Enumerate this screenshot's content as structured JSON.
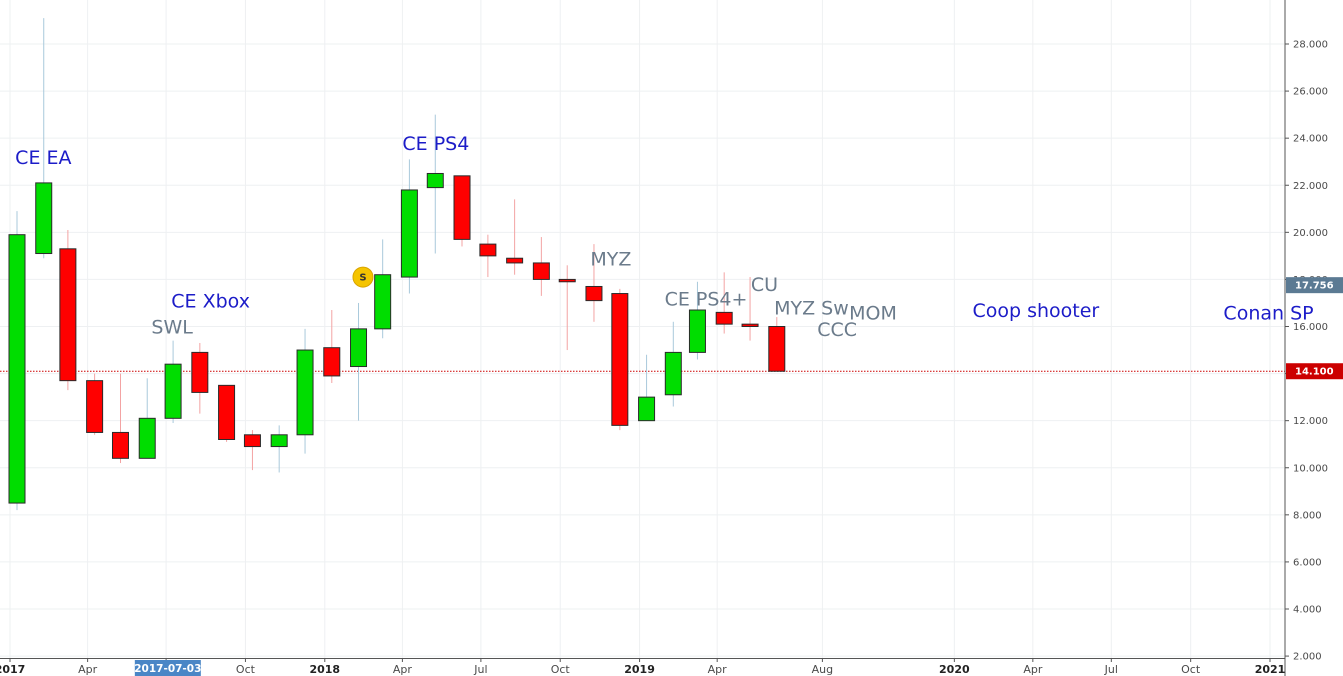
{
  "chart_data": {
    "type": "candlestick",
    "y_axis": {
      "range": [
        2.0,
        29.5
      ],
      "ticks": [
        "2.000",
        "4.000",
        "6.000",
        "8.000",
        "10.000",
        "12.000",
        "14.000",
        "16.000",
        "18.000",
        "20.000",
        "22.000",
        "24.000",
        "26.000",
        "28.000"
      ]
    },
    "x_axis": {
      "range": [
        "2016-12-24",
        "2021-02-15"
      ],
      "ticks": [
        {
          "label": "2017",
          "date": "2017-01-01",
          "bold": true
        },
        {
          "label": "Apr",
          "date": "2017-04-01"
        },
        {
          "label": "Jul",
          "date": "2017-07-01"
        },
        {
          "label": "Oct",
          "date": "2017-10-01"
        },
        {
          "label": "2018",
          "date": "2018-01-01",
          "bold": true
        },
        {
          "label": "Apr",
          "date": "2018-04-01"
        },
        {
          "label": "Jul",
          "date": "2018-07-01"
        },
        {
          "label": "Oct",
          "date": "2018-10-01"
        },
        {
          "label": "2019",
          "date": "2019-01-01",
          "bold": true
        },
        {
          "label": "Apr",
          "date": "2019-04-01"
        },
        {
          "label": "Aug",
          "date": "2019-08-01"
        },
        {
          "label": "2020",
          "date": "2020-01-01",
          "bold": true
        },
        {
          "label": "Apr",
          "date": "2020-04-01"
        },
        {
          "label": "Jul",
          "date": "2020-07-01"
        },
        {
          "label": "Oct",
          "date": "2020-10-01"
        },
        {
          "label": "2021",
          "date": "2021-01-01",
          "bold": true
        }
      ],
      "cursor_label": "2017-07-03",
      "cursor_date": "2017-07-03"
    },
    "candles": [
      {
        "date": "2017-01-01",
        "o": 8.5,
        "h": 20.9,
        "l": 8.2,
        "c": 19.9
      },
      {
        "date": "2017-02-01",
        "o": 19.1,
        "h": 29.1,
        "l": 18.9,
        "c": 22.1
      },
      {
        "date": "2017-03-01",
        "o": 19.3,
        "h": 20.1,
        "l": 13.3,
        "c": 13.7
      },
      {
        "date": "2017-04-01",
        "o": 13.7,
        "h": 14.0,
        "l": 11.4,
        "c": 11.5
      },
      {
        "date": "2017-05-01",
        "o": 11.5,
        "h": 14.0,
        "l": 10.2,
        "c": 10.4
      },
      {
        "date": "2017-06-01",
        "o": 10.4,
        "h": 13.8,
        "l": 10.4,
        "c": 12.1
      },
      {
        "date": "2017-07-01",
        "o": 12.1,
        "h": 15.4,
        "l": 11.9,
        "c": 14.4
      },
      {
        "date": "2017-08-01",
        "o": 14.9,
        "h": 15.3,
        "l": 12.3,
        "c": 13.2
      },
      {
        "date": "2017-09-01",
        "o": 13.5,
        "h": 13.5,
        "l": 11.1,
        "c": 11.2
      },
      {
        "date": "2017-10-01",
        "o": 11.4,
        "h": 11.6,
        "l": 9.9,
        "c": 10.9
      },
      {
        "date": "2017-11-01",
        "o": 10.9,
        "h": 11.8,
        "l": 9.8,
        "c": 11.4
      },
      {
        "date": "2017-12-01",
        "o": 11.4,
        "h": 15.9,
        "l": 10.6,
        "c": 15.0
      },
      {
        "date": "2018-01-01",
        "o": 15.1,
        "h": 16.7,
        "l": 13.6,
        "c": 13.9
      },
      {
        "date": "2018-02-01",
        "o": 14.3,
        "h": 17.0,
        "l": 12.0,
        "c": 15.9
      },
      {
        "date": "2018-03-01",
        "o": 15.9,
        "h": 19.7,
        "l": 15.5,
        "c": 18.2
      },
      {
        "date": "2018-04-01",
        "o": 18.1,
        "h": 23.1,
        "l": 17.4,
        "c": 21.8
      },
      {
        "date": "2018-05-01",
        "o": 21.9,
        "h": 25.0,
        "l": 19.1,
        "c": 22.5
      },
      {
        "date": "2018-06-01",
        "o": 22.4,
        "h": 22.4,
        "l": 19.4,
        "c": 19.7
      },
      {
        "date": "2018-07-01",
        "o": 19.5,
        "h": 19.9,
        "l": 18.1,
        "c": 19.0
      },
      {
        "date": "2018-08-01",
        "o": 18.9,
        "h": 21.4,
        "l": 18.2,
        "c": 18.7
      },
      {
        "date": "2018-09-01",
        "o": 18.7,
        "h": 19.8,
        "l": 17.3,
        "c": 18.0
      },
      {
        "date": "2018-10-01",
        "o": 18.0,
        "h": 18.6,
        "l": 15.0,
        "c": 17.9
      },
      {
        "date": "2018-11-01",
        "o": 17.7,
        "h": 19.5,
        "l": 16.2,
        "c": 17.1
      },
      {
        "date": "2018-12-01",
        "o": 17.4,
        "h": 17.6,
        "l": 11.6,
        "c": 11.8
      },
      {
        "date": "2019-01-01",
        "o": 12.0,
        "h": 14.8,
        "l": 12.0,
        "c": 13.0
      },
      {
        "date": "2019-02-01",
        "o": 13.1,
        "h": 16.2,
        "l": 12.6,
        "c": 14.9
      },
      {
        "date": "2019-03-01",
        "o": 14.9,
        "h": 17.9,
        "l": 14.6,
        "c": 16.7
      },
      {
        "date": "2019-04-01",
        "o": 16.6,
        "h": 18.3,
        "l": 15.7,
        "c": 16.1
      },
      {
        "date": "2019-05-01",
        "o": 16.1,
        "h": 18.1,
        "l": 15.4,
        "c": 16.0
      },
      {
        "date": "2019-06-01",
        "o": 16.0,
        "h": 16.4,
        "l": 14.1,
        "c": 14.1
      }
    ],
    "current_price": {
      "value": 14.1,
      "label": "14.100"
    },
    "secondary_price": {
      "value": 17.756,
      "label": "17.756"
    },
    "annotations": [
      {
        "text": "CE EA",
        "date": "2017-01-07",
        "y": 22.9,
        "color": "#1c1cc8"
      },
      {
        "text": "SWL",
        "date": "2017-06-14",
        "y": 15.7,
        "color": "#6b7b8b"
      },
      {
        "text": "CE Xbox",
        "date": "2017-07-07",
        "y": 16.8,
        "color": "#1c1cc8"
      },
      {
        "text": "CE PS4",
        "date": "2018-04-01",
        "y": 23.5,
        "color": "#1c1cc8"
      },
      {
        "text": "MYZ",
        "date": "2018-11-05",
        "y": 18.6,
        "color": "#6b7b8b"
      },
      {
        "text": "CE PS4+",
        "date": "2019-01-30",
        "y": 16.9,
        "color": "#6b7b8b"
      },
      {
        "text": "CU",
        "date": "2019-05-10",
        "y": 17.5,
        "color": "#6b7b8b"
      },
      {
        "text": "MYZ Sw",
        "date": "2019-06-06",
        "y": 16.5,
        "color": "#6b7b8b"
      },
      {
        "text": "CCC",
        "date": "2019-07-26",
        "y": 15.6,
        "color": "#6b7b8b"
      },
      {
        "text": "MOM",
        "date": "2019-09-01",
        "y": 16.3,
        "color": "#6b7b8b"
      },
      {
        "text": "Coop shooter",
        "date": "2020-01-22",
        "y": 16.4,
        "color": "#1c1cc8"
      },
      {
        "text": "Conan SP",
        "date": "2020-11-08",
        "y": 16.3,
        "color": "#1c1cc8"
      }
    ],
    "split_marker": {
      "label": "S",
      "date": "2018-02-05",
      "y": 18.1
    },
    "colors": {
      "up": "#00dd00",
      "down": "#ff0000",
      "border": "#2a2a2a",
      "grid": "#eef0f2",
      "axis_bg": "#ffffff",
      "price_line": "#cc0000",
      "secondary_tag": "#5b7a93",
      "cursor_tag": "#4a86c6",
      "split_marker": "#f5c400"
    },
    "grid": true
  }
}
